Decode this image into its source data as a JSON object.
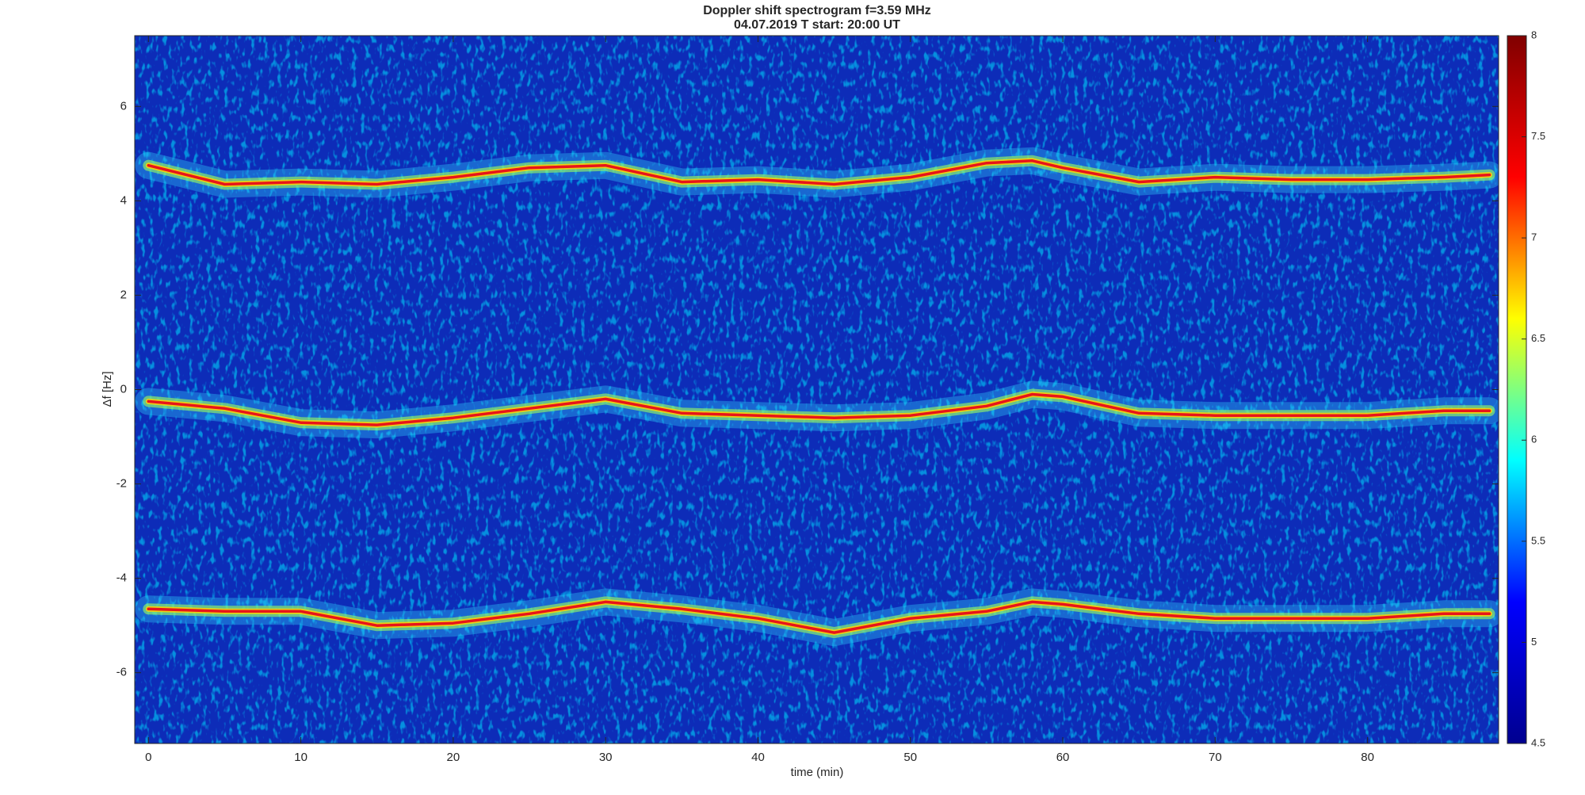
{
  "chart_data": {
    "type": "spectrogram",
    "title": "Doppler shift spectrogram f=3.59 MHz",
    "subtitle": "04.07.2019   T start: 20:00 UT",
    "xlabel": "time (min)",
    "ylabel": "Δf [Hz]",
    "x": [
      0,
      5,
      10,
      15,
      20,
      25,
      30,
      35,
      40,
      45,
      50,
      55,
      58,
      60,
      65,
      70,
      75,
      80,
      85,
      88
    ],
    "series": [
      {
        "color": "#e8141a",
        "values": [
          4.75,
          4.35,
          4.4,
          4.35,
          4.5,
          4.7,
          4.75,
          4.4,
          4.45,
          4.35,
          4.5,
          4.8,
          4.85,
          4.7,
          4.4,
          4.5,
          4.45,
          4.45,
          4.5,
          4.55
        ]
      },
      {
        "color": "#e8141a",
        "values": [
          -0.25,
          -0.4,
          -0.7,
          -0.75,
          -0.6,
          -0.4,
          -0.2,
          -0.5,
          -0.55,
          -0.6,
          -0.55,
          -0.35,
          -0.1,
          -0.15,
          -0.5,
          -0.55,
          -0.55,
          -0.55,
          -0.45,
          -0.45
        ]
      },
      {
        "color": "#e8141a",
        "values": [
          -4.65,
          -4.7,
          -4.7,
          -5,
          -4.95,
          -4.75,
          -4.5,
          -4.65,
          -4.85,
          -5.15,
          -4.85,
          -4.7,
          -4.5,
          -4.55,
          -4.75,
          -4.85,
          -4.85,
          -4.85,
          -4.75,
          -4.75
        ]
      }
    ],
    "xlim": [
      -0.9,
      88.6
    ],
    "xticks": [
      0,
      10,
      20,
      30,
      40,
      50,
      60,
      70,
      80
    ],
    "ylim": [
      -7.5,
      7.5
    ],
    "yticks": [
      -6,
      -4,
      -2,
      0,
      2,
      4,
      6
    ],
    "clim": [
      4.5,
      8
    ],
    "cticks": [
      4.5,
      5,
      5.5,
      6,
      6.5,
      7,
      7.5,
      8
    ],
    "colormap": [
      "#00008f",
      "#0000ff",
      "#00ffff",
      "#ffff00",
      "#ff0000",
      "#800000"
    ]
  }
}
